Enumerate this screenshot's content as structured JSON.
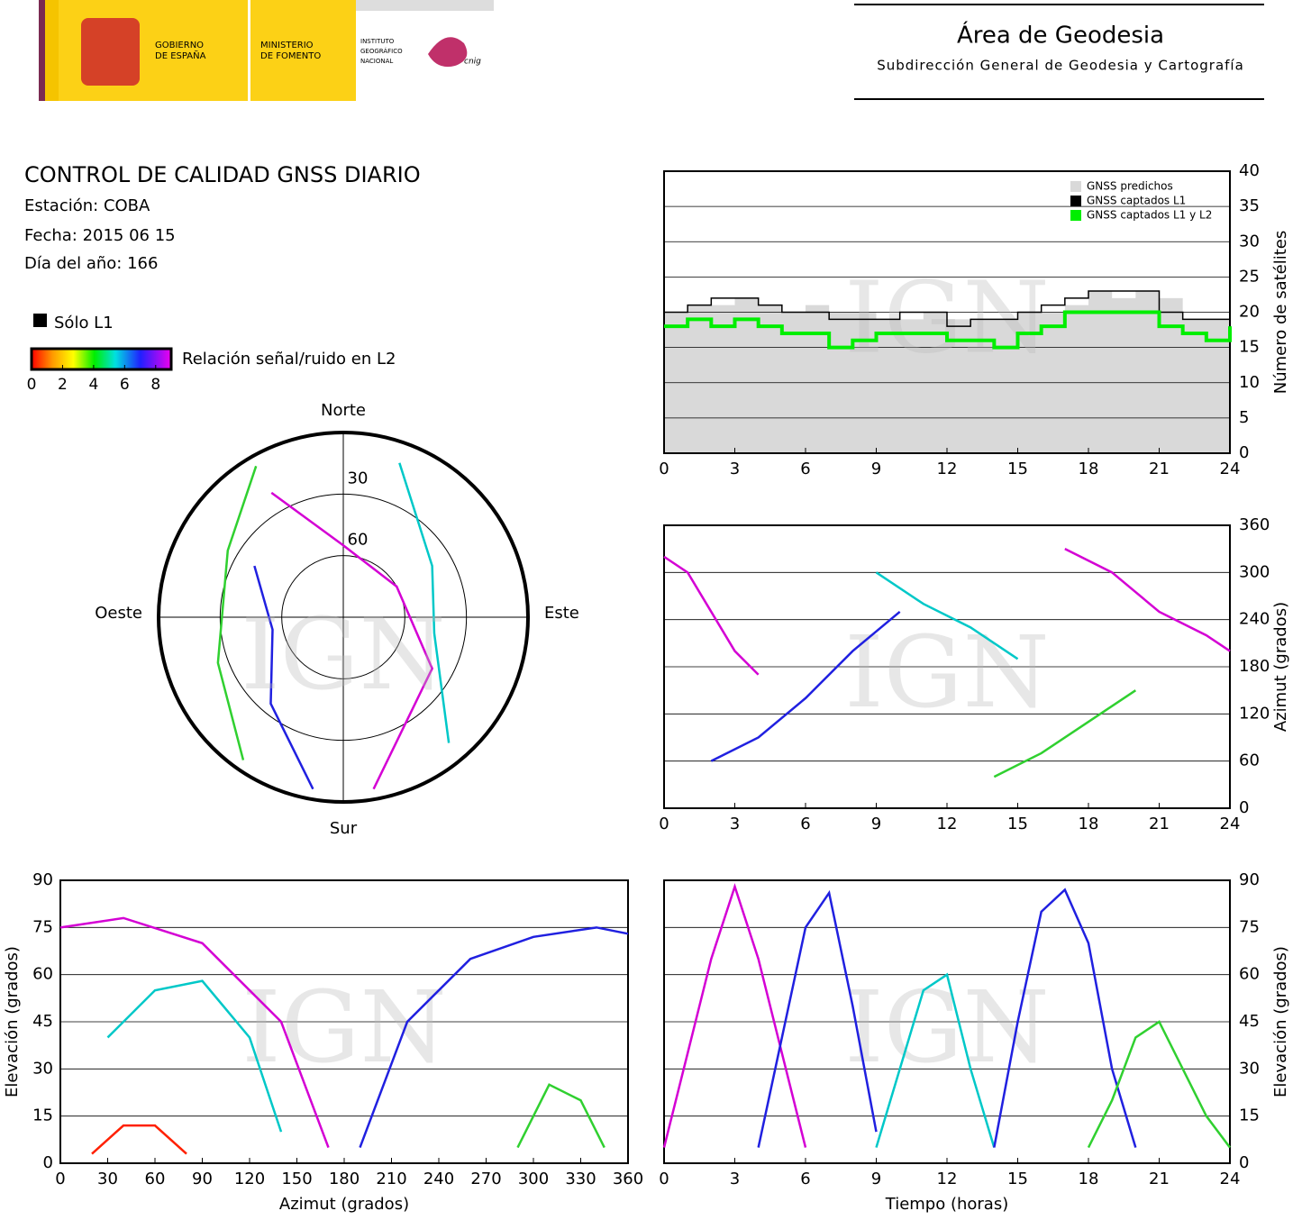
{
  "header": {
    "gobierno": [
      "GOBIERNO",
      "DE ESPAÑA"
    ],
    "ministerio": [
      "MINISTERIO",
      "DE FOMENTO"
    ],
    "instituto": [
      "INSTITUTO",
      "GEOGRÁFICO",
      "NACIONAL"
    ],
    "cnig": "cnig",
    "area": "Área de Geodesia",
    "subdireccion": "Subdirección General de Geodesia y Cartografía"
  },
  "report": {
    "title": "CONTROL DE CALIDAD GNSS DIARIO",
    "station": "Estación: COBA",
    "date": "Fecha: 2015 06 15",
    "doy": "Día del año: 166",
    "only_l1": "Sólo L1",
    "snr_label": "Relación señal/ruido en L2",
    "clim": [
      0,
      9
    ],
    "cticks": [
      0,
      2,
      4,
      6,
      8
    ],
    "watermark": "IGN"
  },
  "chart_data": [
    {
      "type": "step",
      "x": [
        0,
        1,
        2,
        3,
        4,
        5,
        6,
        7,
        8,
        9,
        10,
        11,
        12,
        13,
        14,
        15,
        16,
        17,
        18,
        19,
        20,
        21,
        22,
        23,
        24
      ],
      "xlim": [
        0,
        24
      ],
      "xticks": [
        0,
        3,
        6,
        9,
        12,
        15,
        18,
        21,
        24
      ],
      "ylim": [
        0,
        40
      ],
      "yticks": [
        0,
        5,
        10,
        15,
        20,
        25,
        30,
        35,
        40
      ],
      "ylabel": "Número de satélites",
      "series": [
        {
          "name": "GNSS predichos",
          "color": "#d9d9d9",
          "values": [
            20,
            21,
            21,
            22,
            21,
            20,
            21,
            20,
            20,
            19,
            19,
            20,
            19,
            19,
            19,
            20,
            20,
            21,
            23,
            22,
            23,
            22,
            19,
            19,
            20
          ]
        },
        {
          "name": "GNSS captados L1",
          "color": "#000000",
          "values": [
            20,
            21,
            22,
            22,
            21,
            20,
            20,
            19,
            19,
            19,
            20,
            20,
            18,
            19,
            19,
            20,
            21,
            22,
            23,
            23,
            23,
            20,
            19,
            19,
            21
          ]
        },
        {
          "name": "GNSS captados L1 y L2",
          "color": "#00ee00",
          "values": [
            18,
            19,
            18,
            19,
            18,
            17,
            17,
            15,
            16,
            17,
            17,
            17,
            16,
            16,
            15,
            17,
            18,
            20,
            20,
            20,
            20,
            18,
            17,
            16,
            18
          ]
        }
      ]
    },
    {
      "type": "line",
      "xlim": [
        0,
        24
      ],
      "xticks": [
        0,
        3,
        6,
        9,
        12,
        15,
        18,
        21,
        24
      ],
      "ylim": [
        0,
        360
      ],
      "yticks": [
        0,
        60,
        120,
        180,
        240,
        300,
        360
      ],
      "ylabel": "Azimut (grados)",
      "series": [
        {
          "color": "#d400d4",
          "x": [
            0,
            1,
            2,
            3,
            4
          ],
          "y": [
            320,
            300,
            250,
            200,
            170
          ]
        },
        {
          "color": "#2020e0",
          "x": [
            2,
            4,
            6,
            8,
            10
          ],
          "y": [
            60,
            90,
            140,
            200,
            250
          ]
        },
        {
          "color": "#00c8c8",
          "x": [
            9,
            11,
            13,
            15
          ],
          "y": [
            300,
            260,
            230,
            190
          ]
        },
        {
          "color": "#30d030",
          "x": [
            14,
            16,
            18,
            20
          ],
          "y": [
            40,
            70,
            110,
            150
          ]
        },
        {
          "color": "#d400d4",
          "x": [
            17,
            19,
            21,
            23,
            24
          ],
          "y": [
            330,
            300,
            250,
            220,
            200
          ]
        }
      ]
    },
    {
      "type": "line",
      "xlim": [
        0,
        360
      ],
      "xticks": [
        0,
        30,
        60,
        90,
        120,
        150,
        180,
        210,
        240,
        270,
        300,
        330,
        360
      ],
      "ylim": [
        0,
        90
      ],
      "yticks": [
        0,
        15,
        30,
        45,
        60,
        75,
        90
      ],
      "xlabel": "Azimut (grados)",
      "ylabel": "Elevación (grados)",
      "series": [
        {
          "color": "#d400d4",
          "x": [
            0,
            40,
            90,
            140,
            170
          ],
          "y": [
            75,
            78,
            70,
            45,
            5
          ]
        },
        {
          "color": "#2020e0",
          "x": [
            190,
            220,
            260,
            300,
            340,
            360
          ],
          "y": [
            5,
            45,
            65,
            72,
            75,
            73
          ]
        },
        {
          "color": "#00c8c8",
          "x": [
            30,
            60,
            90,
            120,
            140
          ],
          "y": [
            40,
            55,
            58,
            40,
            10
          ]
        },
        {
          "color": "#30d030",
          "x": [
            290,
            310,
            330,
            345
          ],
          "y": [
            5,
            25,
            20,
            5
          ]
        },
        {
          "color": "#ff2000",
          "x": [
            20,
            40,
            60,
            80
          ],
          "y": [
            3,
            12,
            12,
            3
          ]
        }
      ]
    },
    {
      "type": "line",
      "xlim": [
        0,
        24
      ],
      "xticks": [
        0,
        3,
        6,
        9,
        12,
        15,
        18,
        21,
        24
      ],
      "ylim": [
        0,
        90
      ],
      "yticks": [
        0,
        15,
        30,
        45,
        60,
        75,
        90
      ],
      "xlabel": "Tiempo (horas)",
      "ylabel": "Elevación (grados)",
      "series": [
        {
          "color": "#d400d4",
          "x": [
            0,
            1,
            2,
            3,
            4,
            5,
            6
          ],
          "y": [
            5,
            35,
            65,
            88,
            65,
            35,
            5
          ]
        },
        {
          "color": "#2020e0",
          "x": [
            4,
            5,
            6,
            7,
            8,
            9
          ],
          "y": [
            5,
            40,
            75,
            86,
            50,
            10
          ]
        },
        {
          "color": "#00c8c8",
          "x": [
            9,
            10,
            11,
            12,
            13,
            14
          ],
          "y": [
            5,
            30,
            55,
            60,
            30,
            5
          ]
        },
        {
          "color": "#2020e0",
          "x": [
            14,
            15,
            16,
            17,
            18,
            19,
            20
          ],
          "y": [
            5,
            45,
            80,
            87,
            70,
            30,
            5
          ]
        },
        {
          "color": "#30d030",
          "x": [
            18,
            19,
            20,
            21,
            22,
            23,
            24
          ],
          "y": [
            5,
            20,
            40,
            45,
            30,
            15,
            5
          ]
        }
      ]
    },
    {
      "type": "polar",
      "rticks": [
        30,
        60
      ],
      "north": "Norte",
      "south": "Sur",
      "east": "Este",
      "west": "Oeste",
      "series": [
        {
          "color": "#d400d4",
          "az": [
            330,
            0,
            60,
            120,
            170
          ],
          "el": [
            20,
            55,
            60,
            40,
            5
          ]
        },
        {
          "color": "#2020e0",
          "az": [
            300,
            260,
            220,
            190
          ],
          "el": [
            40,
            55,
            35,
            5
          ]
        },
        {
          "color": "#00c8c8",
          "az": [
            20,
            60,
            100,
            140
          ],
          "el": [
            10,
            40,
            45,
            10
          ]
        },
        {
          "color": "#30d030",
          "az": [
            330,
            300,
            250,
            215
          ],
          "el": [
            5,
            25,
            25,
            5
          ]
        }
      ]
    }
  ]
}
